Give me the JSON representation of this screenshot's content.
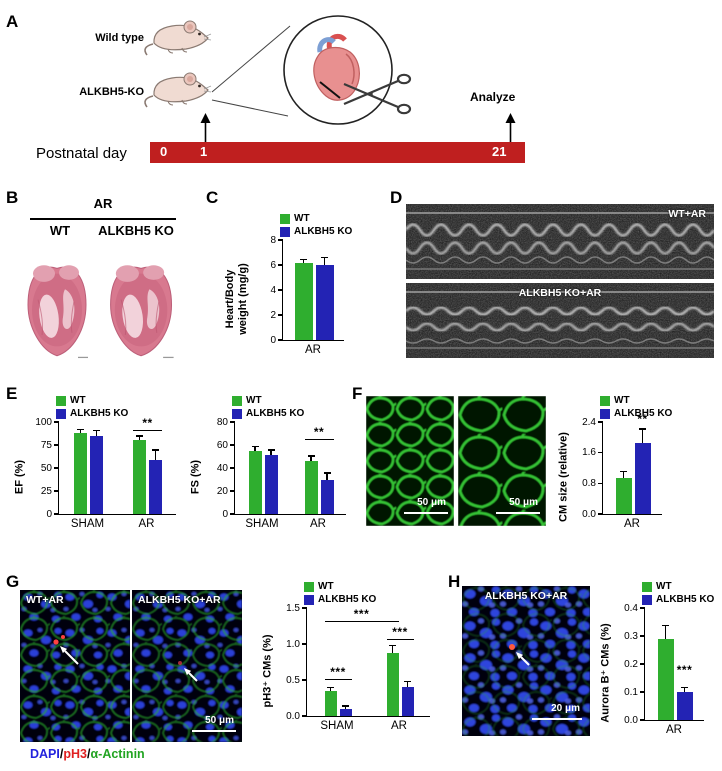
{
  "colors": {
    "wt_green": "#2fae2f",
    "ko_blue": "#2323b4",
    "timeline_red": "#bf1f1f"
  },
  "figure": {
    "panels": {
      "A": {
        "letter": "A",
        "mouse1_label": "Wild type",
        "mouse2_label": "ALKBH5-KO",
        "analyze_label": "Analyze",
        "timeline_label": "Postnatal day",
        "timeline_ticks": [
          "0",
          "1",
          "21"
        ]
      },
      "B": {
        "letter": "B",
        "group_label": "AR",
        "col1_label": "WT",
        "col2_label": "ALKBH5 KO"
      },
      "C": {
        "letter": "C"
      },
      "D": {
        "letter": "D",
        "image1_label": "WT+AR",
        "image2_label": "ALKBH5 KO+AR"
      },
      "E": {
        "letter": "E"
      },
      "F": {
        "letter": "F",
        "scalebar1_label": "50 μm",
        "scalebar2_label": "50 μm"
      },
      "G": {
        "letter": "G",
        "image1_label": "WT+AR",
        "image2_label": "ALKBH5 KO+AR",
        "scalebar_label": "50 μm",
        "caption_parts": [
          {
            "text": "DAPI",
            "color": "#2222dd"
          },
          {
            "text": "/",
            "color": "#000000"
          },
          {
            "text": "pH3",
            "color": "#e02020"
          },
          {
            "text": "/",
            "color": "#000000"
          },
          {
            "text": "α-Actinin",
            "color": "#22a422"
          }
        ]
      },
      "H": {
        "letter": "H",
        "image_label": "ALKBH5 KO+AR",
        "scalebar_label": "20 μm"
      }
    }
  },
  "chart_data": [
    {
      "id": "heart_body_weight",
      "type": "bar",
      "ylabel": "Heart/Body\nweight (mg/g)",
      "ylim": [
        0,
        8
      ],
      "yticks": [
        "0",
        "2",
        "4",
        "6",
        "8"
      ],
      "categories": [
        "AR"
      ],
      "series": [
        {
          "name": "WT",
          "color": "#2fae2f",
          "values": [
            6.2
          ],
          "errors": [
            0.2
          ]
        },
        {
          "name": "ALKBH5 KO",
          "color": "#2323b4",
          "values": [
            6.0
          ],
          "errors": [
            0.55
          ]
        }
      ],
      "sig": []
    },
    {
      "id": "ef",
      "type": "bar",
      "ylabel": "EF (%)",
      "ylim": [
        0,
        100
      ],
      "yticks": [
        "0",
        "25",
        "50",
        "75",
        "100"
      ],
      "categories": [
        "SHAM",
        "AR"
      ],
      "series": [
        {
          "name": "WT",
          "color": "#2fae2f",
          "values": [
            88,
            80
          ],
          "errors": [
            3,
            4
          ]
        },
        {
          "name": "ALKBH5 KO",
          "color": "#2323b4",
          "values": [
            85,
            59
          ],
          "errors": [
            5,
            10
          ]
        }
      ],
      "sig": [
        {
          "from": 2,
          "to": 3,
          "y": 90,
          "label": "**",
          "line": true
        }
      ]
    },
    {
      "id": "fs",
      "type": "bar",
      "ylabel": "FS (%)",
      "ylim": [
        0,
        80
      ],
      "yticks": [
        "0",
        "20",
        "40",
        "60",
        "80"
      ],
      "categories": [
        "SHAM",
        "AR"
      ],
      "series": [
        {
          "name": "WT",
          "color": "#2fae2f",
          "values": [
            55,
            46
          ],
          "errors": [
            3,
            4
          ]
        },
        {
          "name": "ALKBH5 KO",
          "color": "#2323b4",
          "values": [
            51,
            30
          ],
          "errors": [
            4,
            5
          ]
        }
      ],
      "sig": [
        {
          "from": 2,
          "to": 3,
          "y": 64,
          "label": "**",
          "line": true
        }
      ]
    },
    {
      "id": "cm_size",
      "type": "bar",
      "ylabel": "CM size (relative)",
      "ylim": [
        0,
        2.4
      ],
      "yticks": [
        "0.0",
        "0.8",
        "1.6",
        "2.4"
      ],
      "categories": [
        "AR"
      ],
      "series": [
        {
          "name": "WT",
          "color": "#2fae2f",
          "values": [
            0.95
          ],
          "errors": [
            0.15
          ]
        },
        {
          "name": "ALKBH5 KO",
          "color": "#2323b4",
          "values": [
            1.85
          ],
          "errors": [
            0.35
          ]
        }
      ],
      "sig": [
        {
          "from": 1,
          "to": 1,
          "y": 2.28,
          "label": "**",
          "line": false
        }
      ]
    },
    {
      "id": "ph3",
      "type": "bar",
      "ylabel": "pH3⁺ CMs (%)",
      "ylim": [
        0,
        1.5
      ],
      "yticks": [
        "0.0",
        "0.5",
        "1.0",
        "1.5"
      ],
      "categories": [
        "SHAM",
        "AR"
      ],
      "series": [
        {
          "name": "WT",
          "color": "#2fae2f",
          "values": [
            0.35,
            0.87
          ],
          "errors": [
            0.04,
            0.1
          ]
        },
        {
          "name": "ALKBH5 KO",
          "color": "#2323b4",
          "values": [
            0.1,
            0.4
          ],
          "errors": [
            0.03,
            0.07
          ]
        }
      ],
      "sig": [
        {
          "from": 0,
          "to": 1,
          "y": 0.5,
          "label": "***",
          "line": true
        },
        {
          "from": 0,
          "to": 2,
          "y": 1.3,
          "label": "***",
          "line": true
        },
        {
          "from": 2,
          "to": 3,
          "y": 1.05,
          "label": "***",
          "line": true
        }
      ]
    },
    {
      "id": "aurora_b",
      "type": "bar",
      "ylabel": "Aurora B⁺ CMs (%)",
      "ylim": [
        0,
        0.4
      ],
      "yticks": [
        "0.0",
        "0.1",
        "0.2",
        "0.3",
        "0.4"
      ],
      "categories": [
        "AR"
      ],
      "series": [
        {
          "name": "WT",
          "color": "#2fae2f",
          "values": [
            0.29
          ],
          "errors": [
            0.045
          ]
        },
        {
          "name": "ALKBH5 KO",
          "color": "#2323b4",
          "values": [
            0.1
          ],
          "errors": [
            0.015
          ]
        }
      ],
      "sig": [
        {
          "from": 1,
          "to": 1,
          "y": 0.15,
          "label": "***",
          "line": false
        }
      ]
    }
  ]
}
